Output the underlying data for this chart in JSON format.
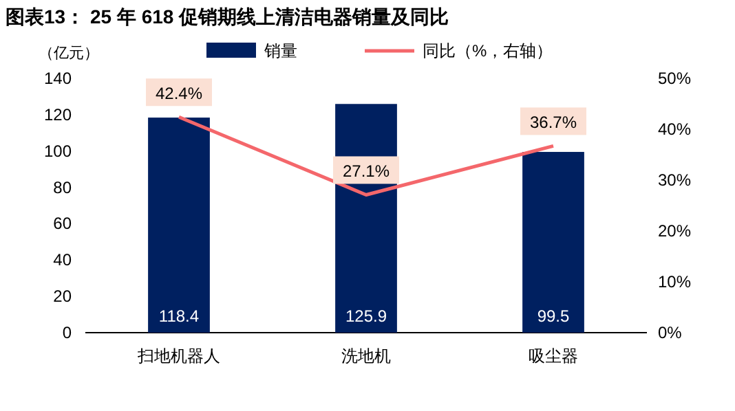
{
  "chart_data": {
    "type": "bar",
    "title": "图表13： 25 年 618 促销期线上清洁电器销量及同比",
    "ylabel": "（亿元）",
    "categories": [
      "扫地机器人",
      "洗地机",
      "吸尘器"
    ],
    "series": [
      {
        "name": "销量",
        "color": "#002060",
        "values": [
          118.4,
          125.9,
          99.5
        ],
        "value_labels": [
          "118.4",
          "125.9",
          "99.5"
        ]
      },
      {
        "name": "同比（%，右轴）",
        "type": "line",
        "axis": "y2",
        "color": "#f4676b",
        "values": [
          42.4,
          27.1,
          36.7
        ],
        "value_labels": [
          "42.4%",
          "27.1%",
          "36.7%"
        ]
      }
    ],
    "ylim": [
      0,
      140
    ],
    "yticks": [
      0,
      20,
      40,
      60,
      80,
      100,
      120,
      140
    ],
    "y2lim": [
      0,
      50
    ],
    "y2ticks": [
      {
        "value": 0,
        "label": "0%"
      },
      {
        "value": 10,
        "label": "10%"
      },
      {
        "value": 20,
        "label": "20%"
      },
      {
        "value": 30,
        "label": "30%"
      },
      {
        "value": 40,
        "label": "40%"
      },
      {
        "value": 50,
        "label": "50%"
      }
    ],
    "legend": "top",
    "grid": false
  }
}
